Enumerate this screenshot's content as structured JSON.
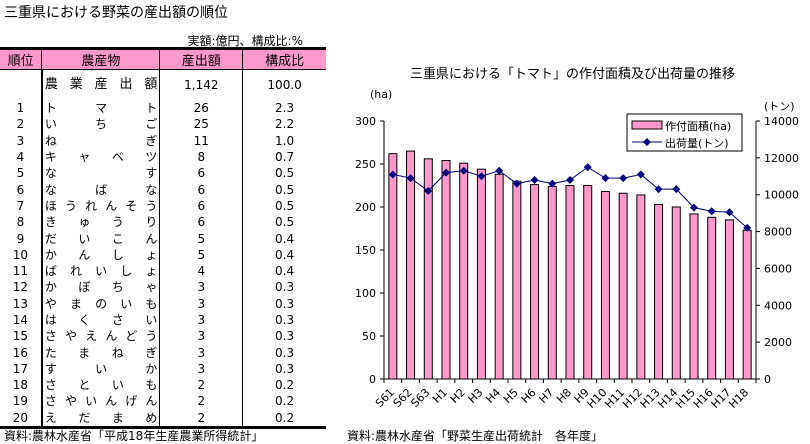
{
  "table": {
    "title": "三重県における野菜の産出額の順位",
    "unit": "実額:億円、構成比:%",
    "headers": [
      "順位",
      "農産物",
      "産出額",
      "構成比"
    ],
    "header_color": "#ff99cc",
    "total": {
      "rank": "",
      "name": "農業産出額",
      "value": "1,142",
      "ratio": "100.0"
    },
    "rows": [
      {
        "rank": "1",
        "name": "トマト",
        "value": "26",
        "ratio": "2.3"
      },
      {
        "rank": "2",
        "name": "いちご",
        "value": "25",
        "ratio": "2.2"
      },
      {
        "rank": "3",
        "name": "ねぎ",
        "value": "11",
        "ratio": "1.0"
      },
      {
        "rank": "4",
        "name": "キャベツ",
        "value": "8",
        "ratio": "0.7"
      },
      {
        "rank": "5",
        "name": "なす",
        "value": "6",
        "ratio": "0.5"
      },
      {
        "rank": "6",
        "name": "なばな",
        "value": "6",
        "ratio": "0.5"
      },
      {
        "rank": "7",
        "name": "ほうれんそう",
        "value": "6",
        "ratio": "0.5"
      },
      {
        "rank": "8",
        "name": "きゅうり",
        "value": "6",
        "ratio": "0.5"
      },
      {
        "rank": "9",
        "name": "だいこん",
        "value": "5",
        "ratio": "0.4"
      },
      {
        "rank": "10",
        "name": "かんしょ",
        "value": "5",
        "ratio": "0.4"
      },
      {
        "rank": "11",
        "name": "ばれいしょ",
        "value": "4",
        "ratio": "0.4"
      },
      {
        "rank": "12",
        "name": "かぼちゃ",
        "value": "3",
        "ratio": "0.3"
      },
      {
        "rank": "13",
        "name": "やまのいも",
        "value": "3",
        "ratio": "0.3"
      },
      {
        "rank": "14",
        "name": "はくさい",
        "value": "3",
        "ratio": "0.3"
      },
      {
        "rank": "15",
        "name": "さやえんどう",
        "value": "3",
        "ratio": "0.3"
      },
      {
        "rank": "16",
        "name": "たまねぎ",
        "value": "3",
        "ratio": "0.3"
      },
      {
        "rank": "17",
        "name": "すいか",
        "value": "3",
        "ratio": "0.3"
      },
      {
        "rank": "18",
        "name": "さといも",
        "value": "2",
        "ratio": "0.2"
      },
      {
        "rank": "19",
        "name": "さやいんげん",
        "value": "2",
        "ratio": "0.2"
      },
      {
        "rank": "20",
        "name": "えだまめ",
        "value": "2",
        "ratio": "0.2"
      }
    ],
    "source": "資料:農林水産省「平成18年生産農業所得統計」"
  },
  "chart_data": {
    "type": "bar+line",
    "title": "三重県における「トマト」の作付面積及び出荷量の推移",
    "categories": [
      "S61",
      "S62",
      "S63",
      "H1",
      "H2",
      "H3",
      "H4",
      "H5",
      "H6",
      "H7",
      "H8",
      "H9",
      "H10",
      "H11",
      "H12",
      "H13",
      "H14",
      "H15",
      "H16",
      "H17",
      "H18"
    ],
    "y_left": {
      "label": "(ha)",
      "range": [
        0,
        300
      ],
      "ticks": [
        0,
        50,
        100,
        150,
        200,
        250,
        300
      ]
    },
    "y_right": {
      "label": "(トン)",
      "range": [
        0,
        14000
      ],
      "ticks": [
        0,
        2000,
        4000,
        6000,
        8000,
        10000,
        12000,
        14000
      ]
    },
    "series": [
      {
        "name": "作付面積(ha)",
        "type": "bar",
        "axis": "left",
        "color": "#ff99cc",
        "values": [
          262,
          265,
          256,
          254,
          251,
          244,
          238,
          230,
          226,
          224,
          225,
          225,
          218,
          216,
          214,
          203,
          200,
          192,
          188,
          185,
          173
        ]
      },
      {
        "name": "出荷量(トン)",
        "type": "line",
        "axis": "right",
        "color": "#000080",
        "values": [
          11100,
          10900,
          10200,
          11200,
          11300,
          11000,
          11300,
          10600,
          10800,
          10600,
          10800,
          11500,
          10900,
          10900,
          11100,
          10300,
          10300,
          9300,
          9100,
          9050,
          8200
        ]
      }
    ],
    "legend": "top-right",
    "grid": false,
    "source": "資料:農林水産省「野菜生産出荷統計　各年度」"
  }
}
